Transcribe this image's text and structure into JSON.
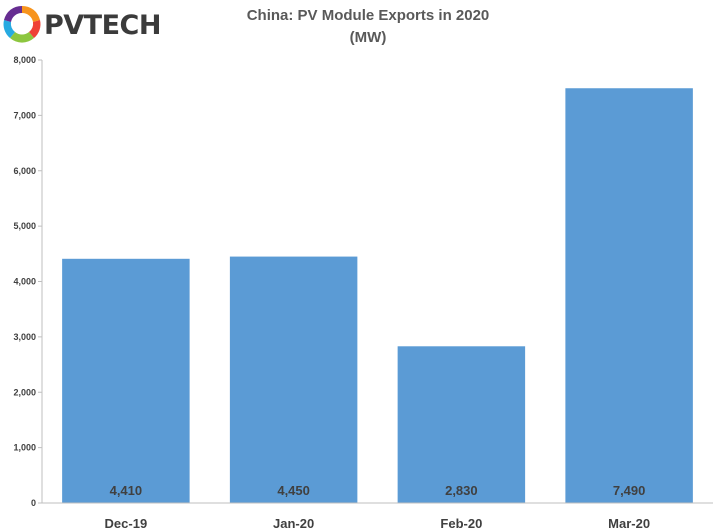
{
  "logo": {
    "text": "PVTECH",
    "text_color": "#3b3b3b",
    "mark_colors": [
      "#f7941d",
      "#ef4136",
      "#8dc63f",
      "#27aae1",
      "#662d91"
    ]
  },
  "chart_data": {
    "type": "bar",
    "title": "China: PV Module Exports in 2020",
    "subtitle": "(MW)",
    "categories": [
      "Dec-19",
      "Jan-20",
      "Feb-20",
      "Mar-20"
    ],
    "values": [
      4410,
      4450,
      2830,
      7490
    ],
    "data_labels": [
      "4,410",
      "4,450",
      "2,830",
      "7,490"
    ],
    "ylim": [
      0,
      8000
    ],
    "yticks": [
      0,
      1000,
      2000,
      3000,
      4000,
      5000,
      6000,
      7000,
      8000
    ],
    "ytick_labels": [
      "0",
      "1,000",
      "2,000",
      "3,000",
      "4,000",
      "5,000",
      "6,000",
      "7,000",
      "8,000"
    ],
    "xlabel": "",
    "ylabel": "",
    "grid": false,
    "legend": "none",
    "bar_color": "#5b9bd5",
    "label_color": "#404040",
    "axis_color": "#bfbfbf"
  }
}
